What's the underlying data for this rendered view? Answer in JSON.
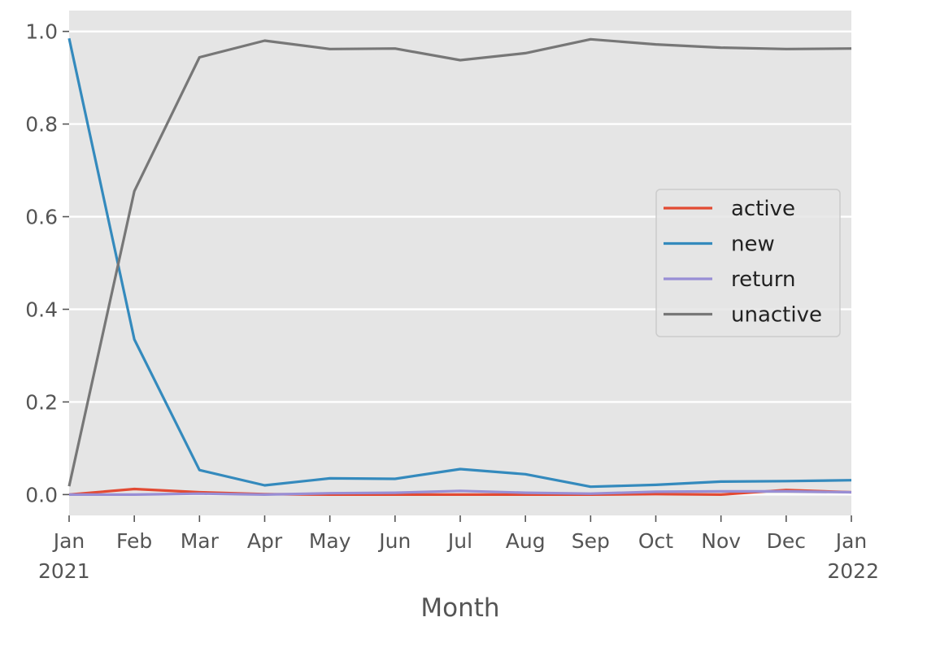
{
  "chart_data": {
    "type": "line",
    "title": "",
    "xlabel": "Month",
    "ylabel": "",
    "x": [
      "2021-01",
      "2021-02",
      "2021-03",
      "2021-04",
      "2021-05",
      "2021-06",
      "2021-07",
      "2021-08",
      "2021-09",
      "2021-10",
      "2021-11",
      "2021-12",
      "2022-01"
    ],
    "x_tick_labels": [
      {
        "month": "Jan",
        "year": "2021"
      },
      {
        "month": "Feb",
        "year": ""
      },
      {
        "month": "Mar",
        "year": ""
      },
      {
        "month": "Apr",
        "year": ""
      },
      {
        "month": "May",
        "year": ""
      },
      {
        "month": "Jun",
        "year": ""
      },
      {
        "month": "Jul",
        "year": ""
      },
      {
        "month": "Aug",
        "year": ""
      },
      {
        "month": "Sep",
        "year": ""
      },
      {
        "month": "Oct",
        "year": ""
      },
      {
        "month": "Nov",
        "year": ""
      },
      {
        "month": "Dec",
        "year": ""
      },
      {
        "month": "Jan",
        "year": "2022"
      }
    ],
    "y_ticks": [
      "0.0",
      "0.2",
      "0.4",
      "0.6",
      "0.8",
      "1.0"
    ],
    "ylim": [
      -0.045,
      1.045
    ],
    "grid": true,
    "legend_position": "center-right",
    "series": [
      {
        "name": "active",
        "color": "#e24a33",
        "values": [
          0.0,
          0.012,
          0.005,
          0.001,
          0.0,
          0.0,
          0.0,
          0.0,
          0.0,
          0.001,
          0.0,
          0.01,
          0.005
        ]
      },
      {
        "name": "new",
        "color": "#348abd",
        "values": [
          0.985,
          0.335,
          0.053,
          0.02,
          0.035,
          0.034,
          0.055,
          0.044,
          0.017,
          0.021,
          0.028,
          0.029,
          0.031
        ]
      },
      {
        "name": "return",
        "color": "#988ed5",
        "values": [
          0.0,
          0.0,
          0.002,
          0.0,
          0.003,
          0.004,
          0.008,
          0.004,
          0.002,
          0.006,
          0.007,
          0.007,
          0.005
        ]
      },
      {
        "name": "unactive",
        "color": "#777777",
        "values": [
          0.018,
          0.655,
          0.944,
          0.98,
          0.962,
          0.963,
          0.938,
          0.953,
          0.983,
          0.972,
          0.965,
          0.962,
          0.963
        ]
      }
    ]
  }
}
